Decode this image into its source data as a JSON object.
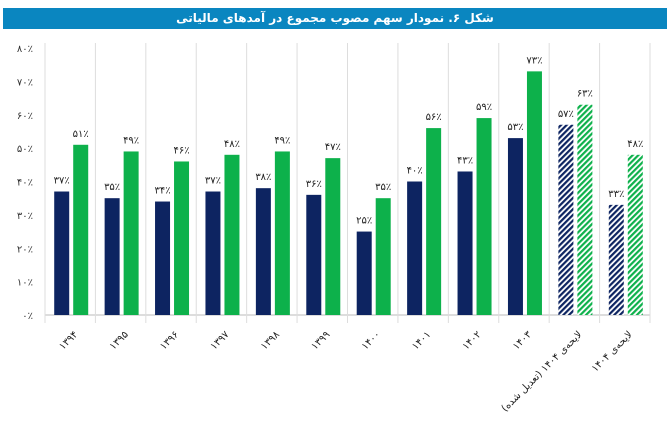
{
  "chart_data": {
    "type": "bar",
    "title": "شکل ۶. نمودار سهم مصوب مجموع در آمدهای مالیاتی",
    "categories": [
      "۱۳۹۴",
      "۱۳۹۵",
      "۱۳۹۶",
      "۱۳۹۷",
      "۱۳۹۸",
      "۱۳۹۹",
      "۱۴۰۰",
      "۱۴۰۱",
      "۱۴۰۲",
      "۱۴۰۳",
      "لایحه‌ی ۱۴۰۴ (تعدیل شده)",
      "لایحه‌ی ۱۴۰۴"
    ],
    "series": [
      {
        "values": [
          37,
          35,
          34,
          37,
          38,
          36,
          25,
          40,
          43,
          53,
          57,
          33
        ],
        "labels": [
          "۳۷٪",
          "۳۵٪",
          "۳۴٪",
          "۳۷٪",
          "۳۸٪",
          "۳۶٪",
          "۲۵٪",
          "۴۰٪",
          "۴۳٪",
          "۵۳٪",
          "۵۷٪",
          "۳۳٪"
        ],
        "color": "#0d2461"
      },
      {
        "values": [
          51,
          49,
          46,
          48,
          49,
          47,
          35,
          56,
          59,
          73,
          63,
          48
        ],
        "labels": [
          "۵۱٪",
          "۴۹٪",
          "۴۶٪",
          "۴۸٪",
          "۴۹٪",
          "۴۷٪",
          "۳۵٪",
          "۵۶٪",
          "۵۹٪",
          "۷۳٪",
          "۶۳٪",
          "۴۸٪"
        ],
        "color": "#0db14b"
      }
    ],
    "hatched_categories": [
      10,
      11
    ],
    "ylim": [
      0,
      80
    ],
    "yticks": [
      0,
      10,
      20,
      30,
      40,
      50,
      60,
      70,
      80
    ],
    "ytick_labels": [
      "۰٪",
      "۱۰٪",
      "۲۰٪",
      "۳۰٪",
      "۴۰٪",
      "۵۰٪",
      "۶۰٪",
      "۷۰٪",
      "۸۰٪"
    ],
    "grid": "vertical separators",
    "legend": "none"
  }
}
